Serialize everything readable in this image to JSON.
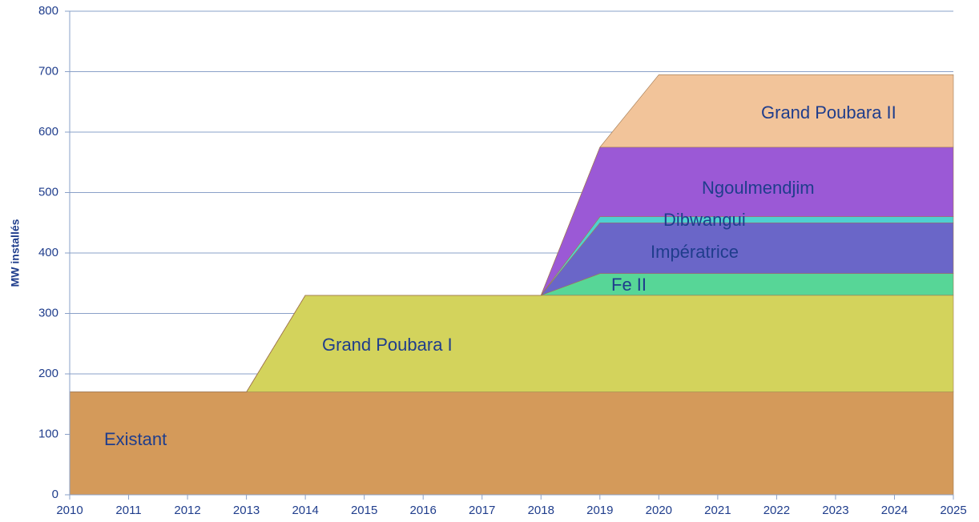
{
  "chart_data": {
    "type": "stacked_area",
    "y_label": "MW installés",
    "x": [
      2010,
      2011,
      2012,
      2013,
      2014,
      2015,
      2016,
      2017,
      2018,
      2019,
      2020,
      2021,
      2022,
      2023,
      2024,
      2025
    ],
    "xlim": [
      2010,
      2025
    ],
    "xticks": [
      2010,
      2011,
      2012,
      2013,
      2014,
      2015,
      2016,
      2017,
      2018,
      2019,
      2020,
      2021,
      2022,
      2023,
      2024,
      2025
    ],
    "ylim": [
      0,
      800
    ],
    "yticks": [
      0,
      100,
      200,
      300,
      400,
      500,
      600,
      700,
      800
    ],
    "grid": true,
    "series": [
      {
        "name": "Existant",
        "color": "#d49a5a",
        "values": [
          170,
          170,
          170,
          170,
          170,
          170,
          170,
          170,
          170,
          170,
          170,
          170,
          170,
          170,
          170,
          170
        ]
      },
      {
        "name": "Grand Poubara I",
        "color": "#d3d35c",
        "values": [
          0,
          0,
          0,
          0,
          160,
          160,
          160,
          160,
          160,
          160,
          160,
          160,
          160,
          160,
          160,
          160
        ]
      },
      {
        "name": "Fe II",
        "color": "#57d697",
        "values": [
          0,
          0,
          0,
          0,
          0,
          0,
          0,
          0,
          0,
          36,
          36,
          36,
          36,
          36,
          36,
          36
        ]
      },
      {
        "name": "Impératrice",
        "color": "#6a66c8",
        "values": [
          0,
          0,
          0,
          0,
          0,
          0,
          0,
          0,
          0,
          84,
          84,
          84,
          84,
          84,
          84,
          84
        ]
      },
      {
        "name": "Dibwangui",
        "color": "#4fd0d0",
        "values": [
          0,
          0,
          0,
          0,
          0,
          0,
          0,
          0,
          0,
          10,
          10,
          10,
          10,
          10,
          10,
          10
        ]
      },
      {
        "name": "Ngoulmendjim",
        "color": "#9b59d6",
        "values": [
          0,
          0,
          0,
          0,
          0,
          0,
          0,
          0,
          0,
          115,
          115,
          115,
          115,
          115,
          115,
          115
        ]
      },
      {
        "name": "Grand Poubara II",
        "color": "#f2c49a",
        "values": [
          0,
          0,
          0,
          0,
          0,
          0,
          0,
          0,
          0,
          0,
          120,
          120,
          120,
          120,
          120,
          120
        ]
      }
    ]
  }
}
